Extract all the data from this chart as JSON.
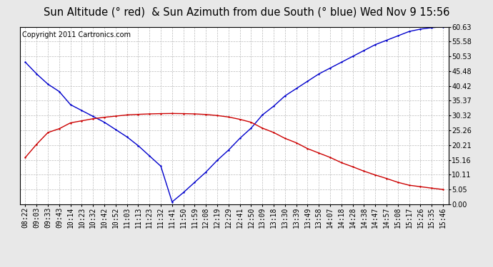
{
  "title": "Sun Altitude (° red)  & Sun Azimuth from due South (° blue) Wed Nov 9 15:56",
  "copyright": "Copyright 2011 Cartronics.com",
  "y_ticks": [
    0.0,
    5.05,
    10.11,
    15.16,
    20.21,
    25.26,
    30.32,
    35.37,
    40.42,
    45.48,
    50.53,
    55.58,
    60.63
  ],
  "x_labels": [
    "08:22",
    "09:03",
    "09:33",
    "09:43",
    "10:14",
    "10:23",
    "10:32",
    "10:42",
    "10:52",
    "11:03",
    "11:13",
    "11:23",
    "11:32",
    "11:41",
    "11:50",
    "11:59",
    "12:08",
    "12:19",
    "12:29",
    "12:41",
    "12:50",
    "13:09",
    "13:18",
    "13:30",
    "13:39",
    "13:49",
    "13:58",
    "14:07",
    "14:18",
    "14:28",
    "14:38",
    "14:47",
    "14:57",
    "15:08",
    "15:17",
    "15:26",
    "15:35",
    "15:46"
  ],
  "blue_y": [
    48.5,
    44.5,
    41.0,
    38.5,
    34.0,
    32.0,
    30.0,
    28.0,
    25.5,
    23.0,
    20.0,
    16.5,
    13.0,
    0.8,
    4.0,
    7.5,
    11.0,
    15.0,
    18.5,
    22.5,
    26.0,
    30.5,
    33.5,
    37.0,
    39.5,
    42.0,
    44.5,
    46.5,
    48.5,
    50.5,
    52.5,
    54.5,
    56.0,
    57.5,
    59.0,
    59.8,
    60.3,
    60.63
  ],
  "red_y": [
    16.0,
    20.5,
    24.5,
    25.8,
    27.8,
    28.5,
    29.2,
    29.7,
    30.1,
    30.5,
    30.7,
    30.85,
    30.95,
    31.0,
    30.95,
    30.85,
    30.65,
    30.3,
    29.8,
    29.0,
    28.0,
    26.0,
    24.5,
    22.5,
    21.0,
    19.0,
    17.5,
    16.0,
    14.2,
    12.8,
    11.3,
    10.0,
    8.8,
    7.5,
    6.5,
    6.0,
    5.5,
    5.05
  ],
  "bg_color": "#e8e8e8",
  "plot_bg_color": "#ffffff",
  "grid_color": "#bbbbbb",
  "blue_color": "#0000cc",
  "red_color": "#cc0000",
  "title_fontsize": 10.5,
  "tick_fontsize": 7,
  "copyright_fontsize": 7
}
